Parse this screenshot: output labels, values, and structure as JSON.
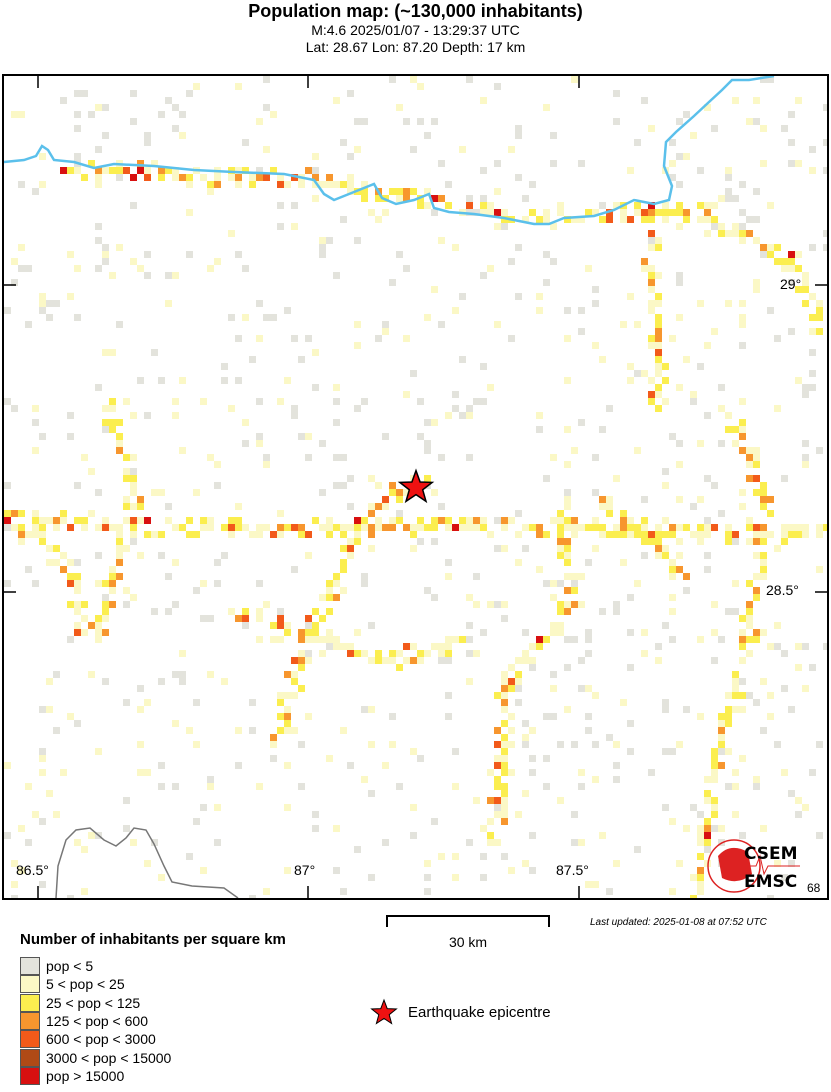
{
  "header": {
    "title": "Population map: (~130,000 inhabitants)",
    "event_line": "M:4.6 2025/01/07 - 13:29:37 UTC",
    "location_line": "Lat: 28.67 Lon: 87.20 Depth: 17 km"
  },
  "map": {
    "lon_labels": [
      "86.5°",
      "87°",
      "87.5°"
    ],
    "lat_labels": [
      "29°",
      "28.5°"
    ],
    "partial_label": "68",
    "epicentre": {
      "lat": 28.67,
      "lon": 87.2,
      "color": "#ee1111"
    },
    "river_color": "#5bc0eb",
    "border_color": "#777777",
    "logo_top": "CSEM",
    "logo_bottom": "EMSC",
    "logo_color": "#dd2222"
  },
  "scale": {
    "label": "30 km"
  },
  "updated": "Last updated: 2025-01-08 at 07:52 UTC",
  "legend": {
    "title": "Number of inhabitants per square km",
    "items": [
      {
        "label": "pop < 5",
        "color": "#e3e3dc"
      },
      {
        "label": "5 < pop < 25",
        "color": "#fbf8c6"
      },
      {
        "label": "25 < pop < 125",
        "color": "#fbee4f"
      },
      {
        "label": "125 < pop < 600",
        "color": "#f7962e"
      },
      {
        "label": "600 < pop < 3000",
        "color": "#f25a1a"
      },
      {
        "label": "3000 < pop < 15000",
        "color": "#b04a16"
      },
      {
        "label": "pop > 15000",
        "color": "#d81010"
      }
    ],
    "epicentre_label": "Earthquake epicentre"
  }
}
